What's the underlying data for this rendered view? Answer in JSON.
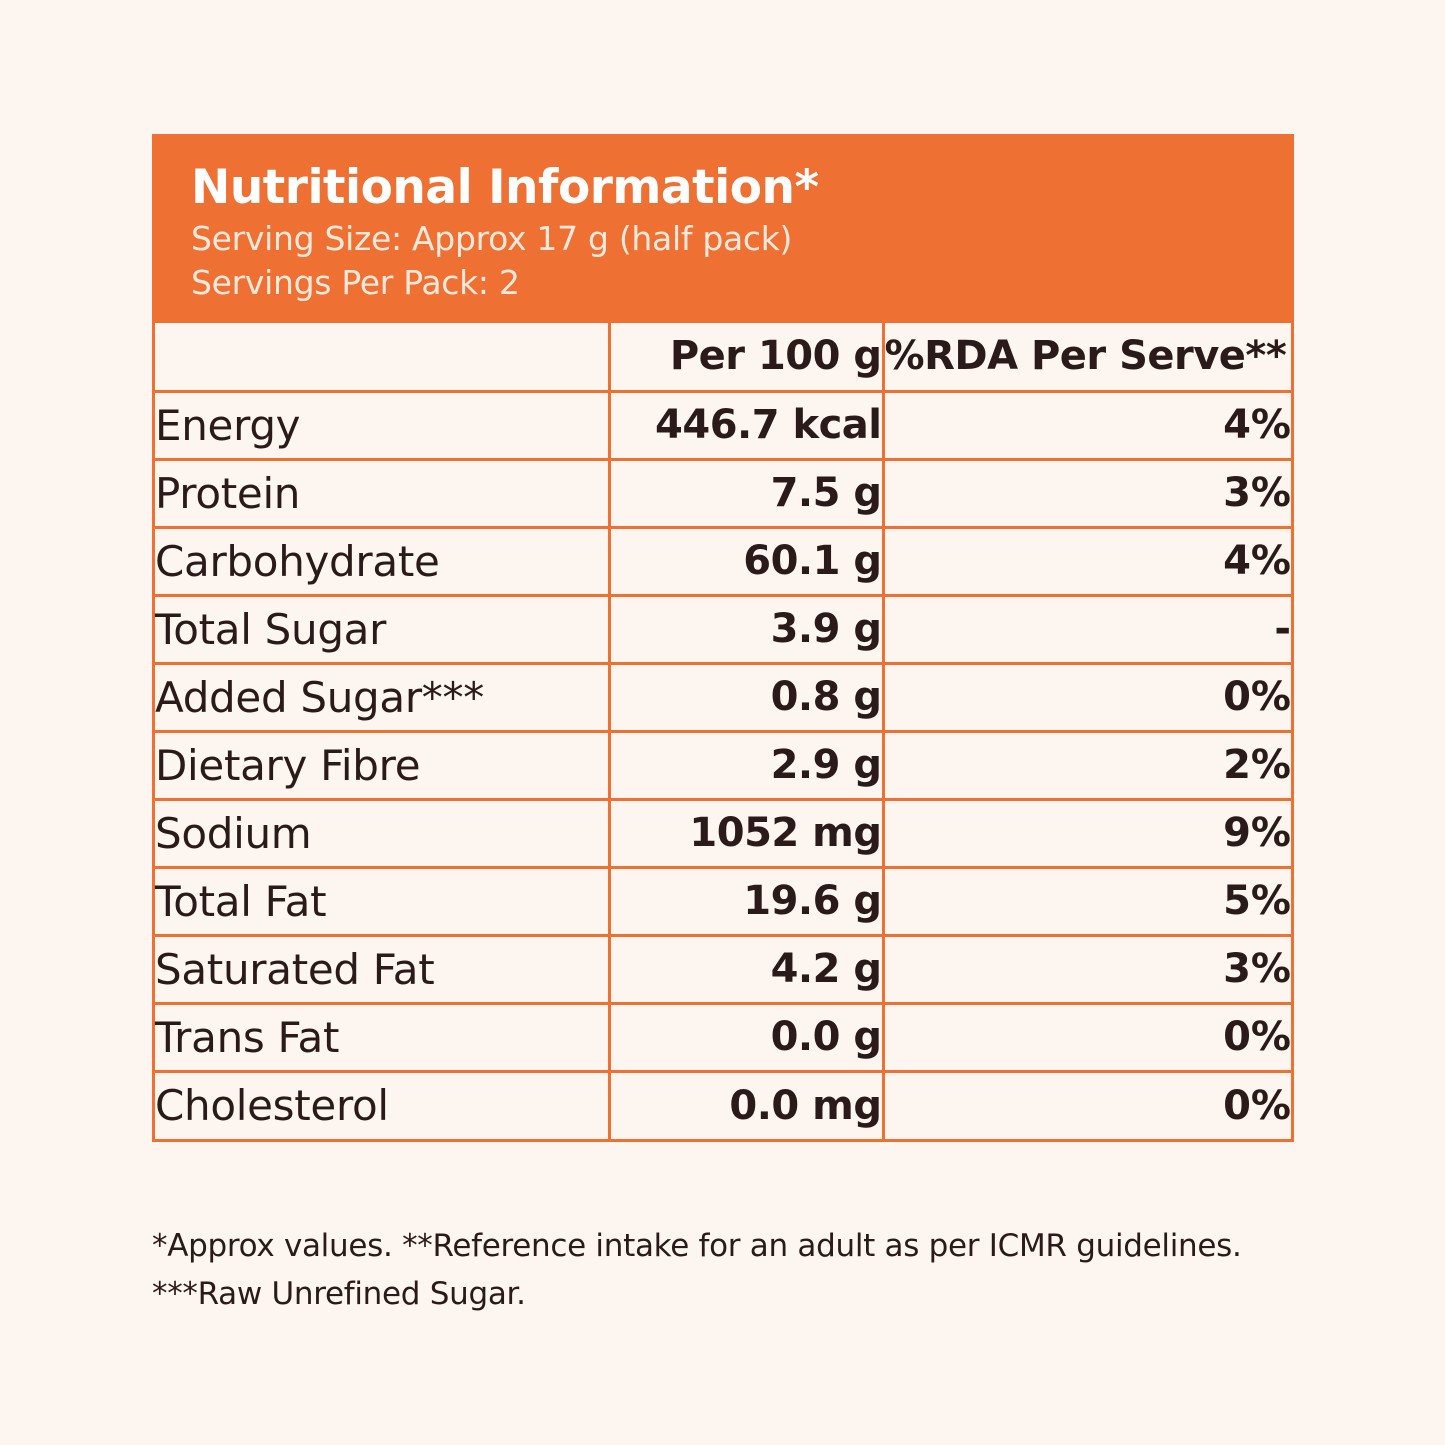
{
  "header": {
    "title": "Nutritional Information*",
    "serving_size": "Serving Size: Approx 17 g (half pack)",
    "servings_per_pack": "Servings Per Pack: 2"
  },
  "table": {
    "columns": [
      "",
      "Per 100 g",
      "%RDA Per Serve**"
    ],
    "rows": [
      {
        "nutrient": "Energy",
        "per_100g": "446.7 kcal",
        "rda": "4%"
      },
      {
        "nutrient": "Protein",
        "per_100g": "7.5 g",
        "rda": "3%"
      },
      {
        "nutrient": "Carbohydrate",
        "per_100g": "60.1 g",
        "rda": "4%"
      },
      {
        "nutrient": "Total Sugar",
        "per_100g": "3.9 g",
        "rda": "-"
      },
      {
        "nutrient": "Added Sugar***",
        "per_100g": "0.8 g",
        "rda": "0%"
      },
      {
        "nutrient": "Dietary Fibre",
        "per_100g": "2.9 g",
        "rda": "2%"
      },
      {
        "nutrient": "Sodium",
        "per_100g": "1052 mg",
        "rda": "9%"
      },
      {
        "nutrient": "Total Fat",
        "per_100g": "19.6 g",
        "rda": "5%"
      },
      {
        "nutrient": "Saturated Fat",
        "per_100g": "4.2 g",
        "rda": "3%"
      },
      {
        "nutrient": "Trans Fat",
        "per_100g": "0.0 g",
        "rda": "0%"
      },
      {
        "nutrient": "Cholesterol",
        "per_100g": "0.0 mg",
        "rda": "0%"
      }
    ]
  },
  "footnotes": {
    "line1": "*Approx values. **Reference intake for an adult as per ICMR guidelines.",
    "line2": "***Raw Unrefined Sugar."
  },
  "colors": {
    "accent": "#ef7033",
    "background": "#fdf6f0",
    "text": "#2b1a1a"
  }
}
